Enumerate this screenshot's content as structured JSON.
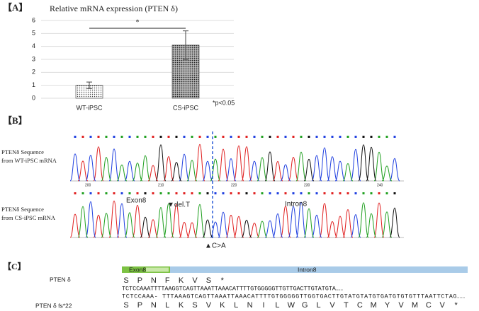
{
  "panel_a": {
    "label": "【A】",
    "chart_data": {
      "type": "bar",
      "title": "Relative mRNA expression (PTEN δ)",
      "categories": [
        "WT-iPSC",
        "CS-iPSC"
      ],
      "values": [
        1.0,
        4.1
      ],
      "errors": [
        0.25,
        1.1
      ],
      "ylim": [
        0,
        6
      ],
      "yticks": [
        0,
        1,
        2,
        3,
        4,
        5,
        6
      ],
      "grid": true,
      "significance": "*",
      "note": "*p<0.05"
    }
  },
  "panel_b": {
    "label": "【B】",
    "wt_label": [
      "PTENδ Sequence",
      "from WT-iPSC mRNA"
    ],
    "cs_label": [
      "PTENδ Sequence",
      "from CS-iPSC mRNA"
    ],
    "positions": [
      "200",
      "210",
      "220",
      "230",
      "240"
    ],
    "exon": "Exon8",
    "deletion": "▼del.T",
    "intron": "Intron8",
    "substitution": "▲C>A"
  },
  "panel_c": {
    "label": "【C】",
    "exon": "Exon8",
    "intron": "Intron8",
    "wt_name": "PTEN δ",
    "wt_aa": [
      "S",
      "P",
      "N",
      "F",
      "K",
      "V",
      "S",
      "*"
    ],
    "wt_seq": "TCTCCAAATTTTAAGGTCAGTTAAATTAAACATTTTGTGGGGGTTGTTGACTTGTATGTA……",
    "cs_seq": "TCTCCAAA- TTTAAAGTCAGTTAAATTAAACATTTTGTGGGGGTTGGTGACTTGTATGTATGTGATGTGTGTTTAATTCTAG……",
    "cs_name": "PTEN δ fs*22",
    "cs_aa": [
      "S",
      "P",
      "N",
      "L",
      "K",
      "S",
      "V",
      "K",
      "L",
      "N",
      "I",
      "L",
      "W",
      "G",
      "L",
      "V",
      "T",
      "C",
      "M",
      "Y",
      "V",
      "M",
      "C",
      "V",
      "*"
    ]
  }
}
